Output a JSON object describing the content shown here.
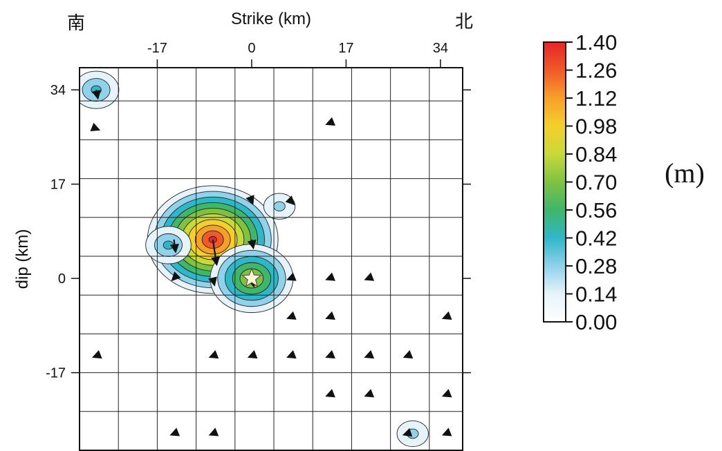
{
  "chart_data": {
    "type": "heatmap",
    "title": "",
    "xlabel": "Strike (km)",
    "ylabel": "dip (km)",
    "corner_left": "南",
    "corner_right": "北",
    "xlim": [
      -31,
      38
    ],
    "ylim": [
      -31,
      38
    ],
    "x_ticks": [
      "-17",
      "0",
      "17",
      "34"
    ],
    "x_tick_values": [
      -17,
      0,
      17,
      34
    ],
    "y_ticks": [
      "34",
      "17",
      "0",
      "-17"
    ],
    "y_tick_values": [
      34,
      17,
      0,
      -17
    ],
    "grid": true,
    "grid_step_km": 7,
    "hypocenter": {
      "x": 0,
      "y": 0
    },
    "peak_slip_m": 1.4,
    "slip_patches": [
      {
        "x": -7,
        "y": 7,
        "slip": 1.4
      },
      {
        "x": 0,
        "y": 0,
        "slip": 0.84
      },
      {
        "x": -15,
        "y": 6,
        "slip": 0.42
      },
      {
        "x": 5,
        "y": 13,
        "slip": 0.28
      },
      {
        "x": -28,
        "y": 34,
        "slip": 0.42
      },
      {
        "x": 29,
        "y": -28,
        "slip": 0.28
      },
      {
        "x": -28,
        "y": -14,
        "slip": 0.1
      }
    ],
    "slip_vectors": [
      {
        "x": -28,
        "y": 34,
        "dx": 0.3,
        "dy": -1.5
      },
      {
        "x": -28,
        "y": 27,
        "dx": 0.5,
        "dy": -0.2
      },
      {
        "x": 14,
        "y": 28,
        "dx": -0.5,
        "dy": -0.2
      },
      {
        "x": 0,
        "y": 14,
        "dx": 0.2,
        "dy": -0.5
      },
      {
        "x": 7,
        "y": 14,
        "dx": 0.6,
        "dy": -0.6
      },
      {
        "x": -14,
        "y": 7,
        "dx": 0.3,
        "dy": -2.2
      },
      {
        "x": -7,
        "y": 7,
        "dx": 0.7,
        "dy": -4.5
      },
      {
        "x": 0,
        "y": 7,
        "dx": 0.3,
        "dy": -1.5
      },
      {
        "x": -14,
        "y": 0,
        "dx": -0.3,
        "dy": -0.3
      },
      {
        "x": -7,
        "y": 0,
        "dx": 0.3,
        "dy": -1.2
      },
      {
        "x": 0,
        "y": 0,
        "dx": 0.4,
        "dy": -1.4
      },
      {
        "x": 7,
        "y": 0,
        "dx": -0.5,
        "dy": -0.2
      },
      {
        "x": 14,
        "y": 0,
        "dx": -0.5,
        "dy": -0.2
      },
      {
        "x": 21,
        "y": 0,
        "dx": -0.5,
        "dy": -0.2
      },
      {
        "x": 7,
        "y": -7,
        "dx": -0.5,
        "dy": -0.2
      },
      {
        "x": 14,
        "y": -7,
        "dx": -0.5,
        "dy": -0.2
      },
      {
        "x": 35,
        "y": -7,
        "dx": -0.5,
        "dy": -0.2
      },
      {
        "x": -28,
        "y": -14,
        "dx": -0.5,
        "dy": -0.2
      },
      {
        "x": -7,
        "y": -14,
        "dx": -0.5,
        "dy": -0.2
      },
      {
        "x": 0,
        "y": -14,
        "dx": -0.5,
        "dy": -0.2
      },
      {
        "x": 7,
        "y": -14,
        "dx": -0.5,
        "dy": -0.2
      },
      {
        "x": 14,
        "y": -14,
        "dx": -0.5,
        "dy": -0.2
      },
      {
        "x": 21,
        "y": -14,
        "dx": -0.5,
        "dy": -0.2
      },
      {
        "x": 28,
        "y": -14,
        "dx": -0.5,
        "dy": -0.2
      },
      {
        "x": 14,
        "y": -21,
        "dx": -0.5,
        "dy": -0.2
      },
      {
        "x": 21,
        "y": -21,
        "dx": -0.5,
        "dy": -0.2
      },
      {
        "x": 35,
        "y": -21,
        "dx": -0.5,
        "dy": -0.2
      },
      {
        "x": -14,
        "y": -28,
        "dx": -0.5,
        "dy": -0.2
      },
      {
        "x": -7,
        "y": -28,
        "dx": -0.5,
        "dy": -0.2
      },
      {
        "x": 28,
        "y": -28,
        "dx": -0.6,
        "dy": -0.2
      },
      {
        "x": 35,
        "y": -28,
        "dx": -0.5,
        "dy": -0.2
      }
    ],
    "colorbar": {
      "unit_label": "(m)",
      "levels": [
        "1.40",
        "1.26",
        "1.12",
        "0.98",
        "0.84",
        "0.70",
        "0.56",
        "0.42",
        "0.28",
        "0.14",
        "0.00"
      ],
      "level_values": [
        1.4,
        1.26,
        1.12,
        0.98,
        0.84,
        0.7,
        0.56,
        0.42,
        0.28,
        0.14,
        0.0
      ],
      "colors": [
        "#e8252a",
        "#f05a28",
        "#f6a02a",
        "#f4cf2c",
        "#c8d93a",
        "#7fc242",
        "#3fb66a",
        "#2fb7c8",
        "#8fd2ea",
        "#e6f3fb",
        "#ffffff"
      ]
    }
  }
}
